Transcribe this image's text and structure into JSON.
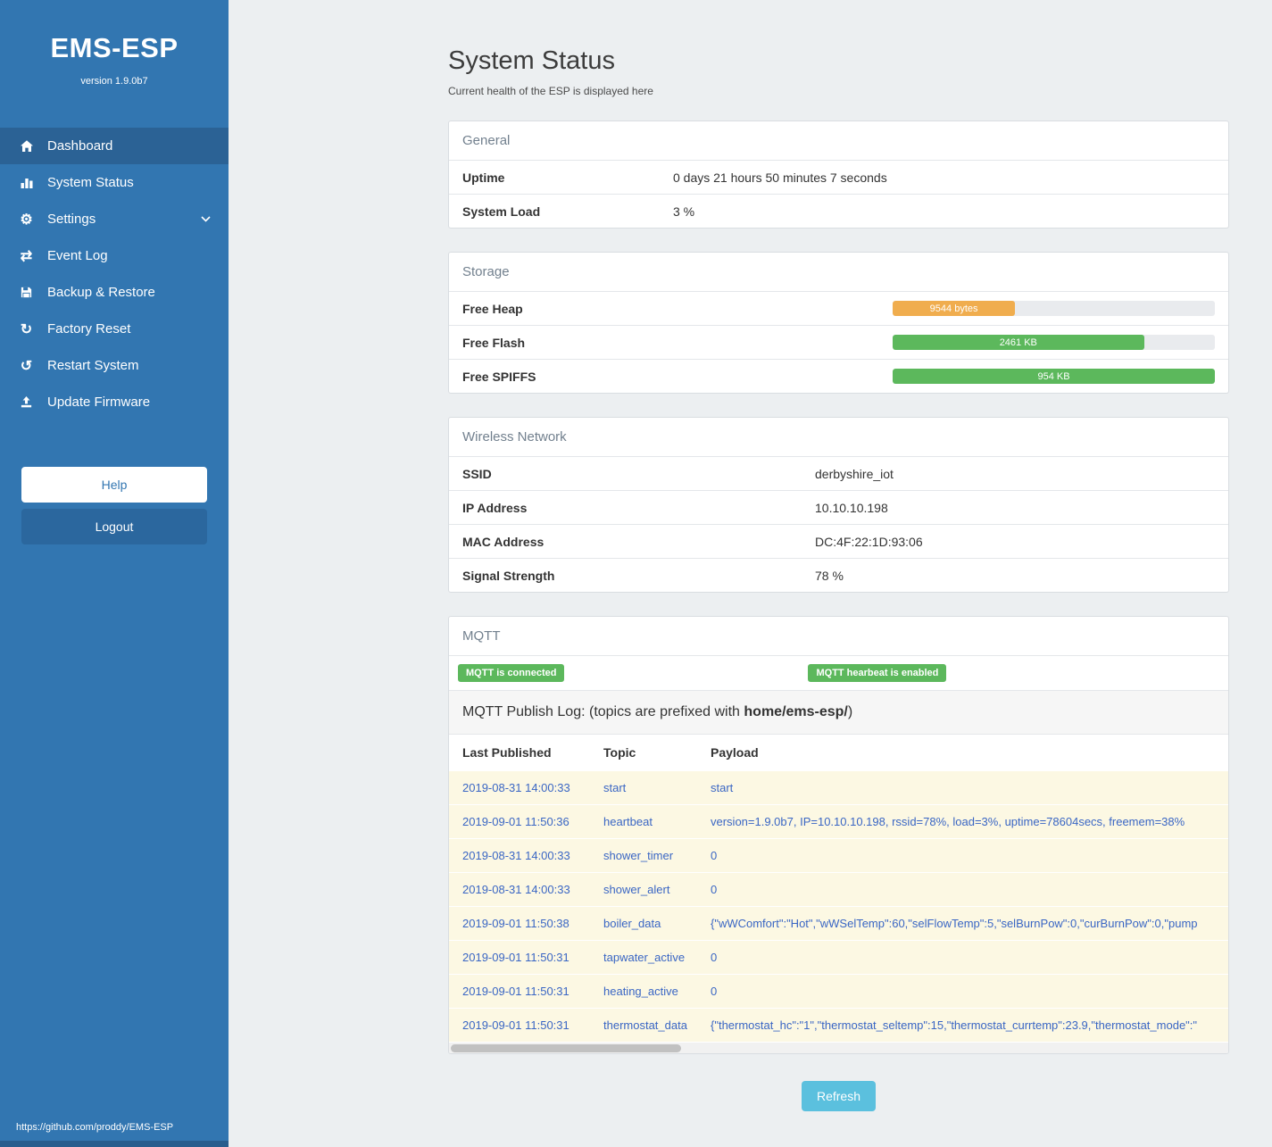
{
  "sidebar": {
    "title": "EMS-ESP",
    "version": "version 1.9.0b7",
    "nav": [
      {
        "label": "Dashboard"
      },
      {
        "label": "System Status"
      },
      {
        "label": "Settings"
      },
      {
        "label": "Event Log"
      },
      {
        "label": "Backup & Restore"
      },
      {
        "label": "Factory Reset"
      },
      {
        "label": "Restart System"
      },
      {
        "label": "Update Firmware"
      }
    ],
    "help_label": "Help",
    "logout_label": "Logout",
    "footer_link": "https://github.com/proddy/EMS-ESP"
  },
  "page": {
    "title": "System Status",
    "subtitle": "Current health of the ESP is displayed here",
    "refresh_label": "Refresh"
  },
  "general": {
    "header": "General",
    "rows": [
      {
        "label": "Uptime",
        "value": "0 days 21 hours 50 minutes 7 seconds"
      },
      {
        "label": "System Load",
        "value": "3 %"
      }
    ]
  },
  "storage": {
    "header": "Storage",
    "rows": [
      {
        "label": "Free Heap",
        "value": "9544 bytes",
        "percent": 38,
        "color": "#f0ad4e"
      },
      {
        "label": "Free Flash",
        "value": "2461 KB",
        "percent": 78,
        "color": "#5cb85c"
      },
      {
        "label": "Free SPIFFS",
        "value": "954 KB",
        "percent": 100,
        "color": "#5cb85c"
      }
    ]
  },
  "wireless": {
    "header": "Wireless Network",
    "rows": [
      {
        "label": "SSID",
        "value": "derbyshire_iot"
      },
      {
        "label": "IP Address",
        "value": "10.10.10.198"
      },
      {
        "label": "MAC Address",
        "value": "DC:4F:22:1D:93:06"
      },
      {
        "label": "Signal Strength",
        "value": "78 %"
      }
    ]
  },
  "mqtt": {
    "header": "MQTT",
    "badges": [
      "MQTT is connected",
      "MQTT hearbeat is enabled"
    ],
    "log_title_prefix": "MQTT Publish Log: (topics are prefixed with ",
    "log_title_bold": "home/ems-esp/",
    "log_title_suffix": ")",
    "columns": [
      "Last Published",
      "Topic",
      "Payload"
    ],
    "rows": [
      [
        "2019-08-31 14:00:33",
        "start",
        "start"
      ],
      [
        "2019-09-01 11:50:36",
        "heartbeat",
        "version=1.9.0b7, IP=10.10.10.198, rssid=78%, load=3%, uptime=78604secs, freemem=38%"
      ],
      [
        "2019-08-31 14:00:33",
        "shower_timer",
        "0"
      ],
      [
        "2019-08-31 14:00:33",
        "shower_alert",
        "0"
      ],
      [
        "2019-09-01 11:50:38",
        "boiler_data",
        "{\"wWComfort\":\"Hot\",\"wWSelTemp\":60,\"selFlowTemp\":5,\"selBurnPow\":0,\"curBurnPow\":0,\"pump"
      ],
      [
        "2019-09-01 11:50:31",
        "tapwater_active",
        "0"
      ],
      [
        "2019-09-01 11:50:31",
        "heating_active",
        "0"
      ],
      [
        "2019-09-01 11:50:31",
        "thermostat_data",
        "{\"thermostat_hc\":\"1\",\"thermostat_seltemp\":15,\"thermostat_currtemp\":23.9,\"thermostat_mode\":\""
      ]
    ]
  }
}
